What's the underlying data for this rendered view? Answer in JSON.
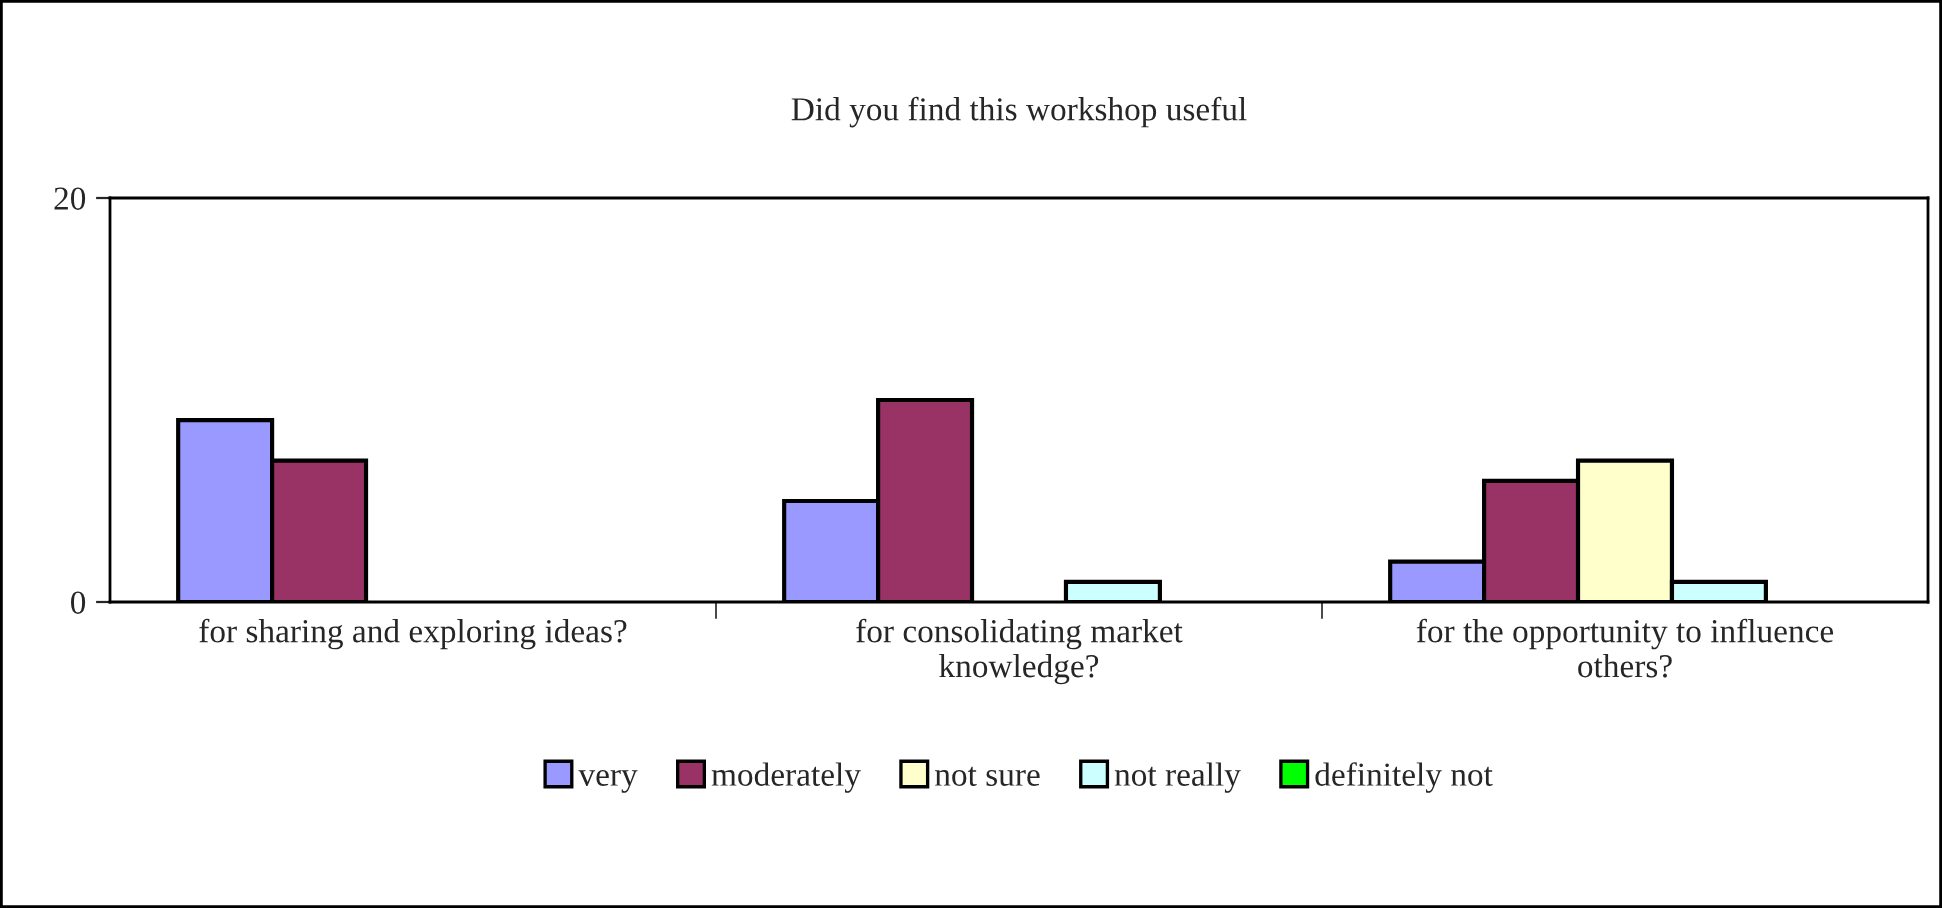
{
  "chart_data": {
    "type": "bar",
    "title": "Did you find this workshop useful",
    "categories": [
      "for sharing and exploring ideas?",
      "for consolidating market\nknowledge?",
      "for the opportunity to influence\nothers?"
    ],
    "series": [
      {
        "name": "very",
        "color": "#9999ff",
        "values": [
          9,
          5,
          2
        ]
      },
      {
        "name": "moderately",
        "color": "#993366",
        "values": [
          7,
          10,
          6
        ]
      },
      {
        "name": "not sure",
        "color": "#ffffcc",
        "values": [
          null,
          null,
          7
        ]
      },
      {
        "name": "not really",
        "color": "#ccffff",
        "values": [
          null,
          1,
          1
        ]
      },
      {
        "name": "definitely not",
        "color": "#00ff00",
        "values": [
          null,
          null,
          null
        ]
      }
    ],
    "ylim": [
      0,
      20
    ],
    "yticks": [
      0,
      20
    ],
    "grid": false,
    "legend": "bottom"
  }
}
